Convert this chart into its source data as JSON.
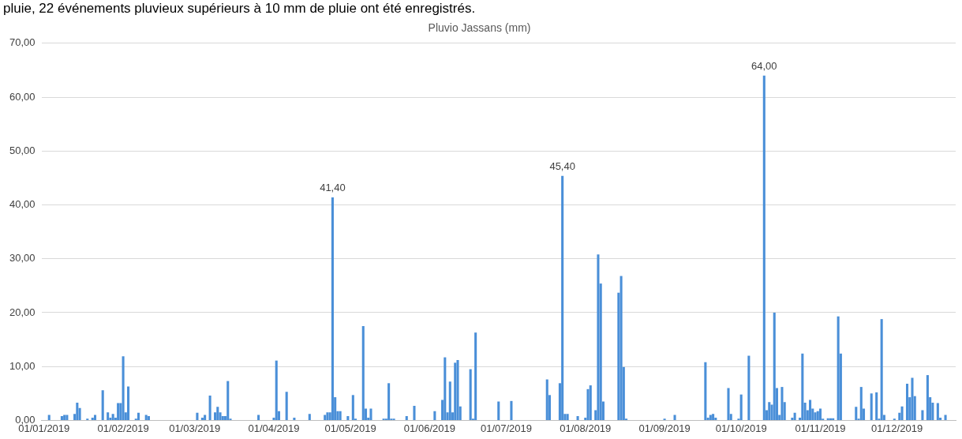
{
  "chart_data": {
    "type": "bar",
    "title": "Pluvio Jassans (mm)",
    "annotations": [
      "pluie, 22 événements pluvieux supérieurs à 10 mm de pluie ont été enregistrés."
    ],
    "x": [
      "2019-01-03",
      "2019-01-08",
      "2019-01-09",
      "2019-01-10",
      "2019-01-13",
      "2019-01-14",
      "2019-01-15",
      "2019-01-18",
      "2019-01-20",
      "2019-01-21",
      "2019-01-24",
      "2019-01-26",
      "2019-01-27",
      "2019-01-28",
      "2019-01-29",
      "2019-01-30",
      "2019-01-31",
      "2019-02-01",
      "2019-02-02",
      "2019-02-03",
      "2019-02-06",
      "2019-02-07",
      "2019-02-10",
      "2019-02-11",
      "2019-03-02",
      "2019-03-04",
      "2019-03-05",
      "2019-03-07",
      "2019-03-09",
      "2019-03-10",
      "2019-03-11",
      "2019-03-12",
      "2019-03-13",
      "2019-03-14",
      "2019-03-15",
      "2019-03-26",
      "2019-04-01",
      "2019-04-02",
      "2019-04-03",
      "2019-04-06",
      "2019-04-09",
      "2019-04-15",
      "2019-04-21",
      "2019-04-22",
      "2019-04-23",
      "2019-04-24",
      "2019-04-25",
      "2019-04-26",
      "2019-04-27",
      "2019-04-30",
      "2019-05-02",
      "2019-05-03",
      "2019-05-06",
      "2019-05-07",
      "2019-05-08",
      "2019-05-09",
      "2019-05-14",
      "2019-05-15",
      "2019-05-16",
      "2019-05-17",
      "2019-05-18",
      "2019-05-23",
      "2019-05-26",
      "2019-06-03",
      "2019-06-06",
      "2019-06-07",
      "2019-06-08",
      "2019-06-09",
      "2019-06-10",
      "2019-06-11",
      "2019-06-12",
      "2019-06-13",
      "2019-06-17",
      "2019-06-18",
      "2019-06-19",
      "2019-06-28",
      "2019-07-03",
      "2019-07-17",
      "2019-07-18",
      "2019-07-22",
      "2019-07-23",
      "2019-07-24",
      "2019-07-25",
      "2019-07-29",
      "2019-08-01",
      "2019-08-02",
      "2019-08-03",
      "2019-08-05",
      "2019-08-06",
      "2019-08-07",
      "2019-08-08",
      "2019-08-14",
      "2019-08-15",
      "2019-08-16",
      "2019-08-17",
      "2019-09-01",
      "2019-09-05",
      "2019-09-17",
      "2019-09-18",
      "2019-09-19",
      "2019-09-20",
      "2019-09-21",
      "2019-09-26",
      "2019-09-27",
      "2019-09-30",
      "2019-10-01",
      "2019-10-04",
      "2019-10-10",
      "2019-10-11",
      "2019-10-12",
      "2019-10-13",
      "2019-10-14",
      "2019-10-15",
      "2019-10-16",
      "2019-10-17",
      "2019-10-18",
      "2019-10-21",
      "2019-10-22",
      "2019-10-24",
      "2019-10-25",
      "2019-10-26",
      "2019-10-27",
      "2019-10-28",
      "2019-10-29",
      "2019-10-30",
      "2019-10-31",
      "2019-11-01",
      "2019-11-02",
      "2019-11-04",
      "2019-11-05",
      "2019-11-06",
      "2019-11-08",
      "2019-11-09",
      "2019-11-15",
      "2019-11-16",
      "2019-11-17",
      "2019-11-18",
      "2019-11-21",
      "2019-11-23",
      "2019-11-24",
      "2019-11-25",
      "2019-11-26",
      "2019-11-30",
      "2019-12-02",
      "2019-12-03",
      "2019-12-05",
      "2019-12-06",
      "2019-12-07",
      "2019-12-08",
      "2019-12-11",
      "2019-12-13",
      "2019-12-14",
      "2019-12-15",
      "2019-12-17",
      "2019-12-18",
      "2019-12-20"
    ],
    "values": [
      1.0,
      0.8,
      1.0,
      1.0,
      1.2,
      3.3,
      2.3,
      0.3,
      0.5,
      1.0,
      5.6,
      1.5,
      0.5,
      1.2,
      0.5,
      3.2,
      3.2,
      11.9,
      1.5,
      6.3,
      0.3,
      1.4,
      1.0,
      0.8,
      1.4,
      0.5,
      1.0,
      4.6,
      1.5,
      2.5,
      1.5,
      0.8,
      0.8,
      7.3,
      0.3,
      1.0,
      0.5,
      11.1,
      1.7,
      5.3,
      0.5,
      1.2,
      1.0,
      1.5,
      1.5,
      41.4,
      4.3,
      1.7,
      1.7,
      0.8,
      4.7,
      0.3,
      17.5,
      2.2,
      0.5,
      2.2,
      0.3,
      0.3,
      6.9,
      0.3,
      0.3,
      0.8,
      2.7,
      1.7,
      3.8,
      11.7,
      1.5,
      7.2,
      1.5,
      10.7,
      11.2,
      2.6,
      9.5,
      0.3,
      16.3,
      3.5,
      3.6,
      7.6,
      4.7,
      6.9,
      45.4,
      1.2,
      1.2,
      0.8,
      0.5,
      5.8,
      6.5,
      1.9,
      30.8,
      25.4,
      3.5,
      23.7,
      26.8,
      9.9,
      0.3,
      0.3,
      1.0,
      10.8,
      0.5,
      1.0,
      1.2,
      0.5,
      6.0,
      1.2,
      0.3,
      4.8,
      12.0,
      64.0,
      1.9,
      3.4,
      2.9,
      20.0,
      6.0,
      1.0,
      6.2,
      3.4,
      0.5,
      1.4,
      0.5,
      12.4,
      3.3,
      1.9,
      3.8,
      2.2,
      1.5,
      1.7,
      2.2,
      0.3,
      0.4,
      0.4,
      0.4,
      19.3,
      12.4,
      2.5,
      0.3,
      6.2,
      2.2,
      5.0,
      5.2,
      0.3,
      18.8,
      1.0,
      0.3,
      1.4,
      2.6,
      6.8,
      4.3,
      7.9,
      4.5,
      1.9,
      8.4,
      4.3,
      3.3,
      3.2,
      0.5,
      1.0
    ],
    "value_labels": [
      null,
      null,
      null,
      null,
      null,
      null,
      null,
      null,
      null,
      null,
      null,
      null,
      null,
      null,
      null,
      null,
      null,
      null,
      null,
      null,
      null,
      null,
      null,
      null,
      null,
      null,
      null,
      null,
      null,
      null,
      null,
      null,
      null,
      null,
      null,
      null,
      null,
      null,
      null,
      null,
      null,
      null,
      null,
      null,
      null,
      "41,40",
      null,
      null,
      null,
      null,
      null,
      null,
      null,
      null,
      null,
      null,
      null,
      null,
      null,
      null,
      null,
      null,
      null,
      null,
      null,
      null,
      null,
      null,
      null,
      null,
      null,
      null,
      null,
      null,
      null,
      null,
      null,
      null,
      null,
      null,
      "45,40",
      null,
      null,
      null,
      null,
      null,
      null,
      null,
      null,
      null,
      null,
      null,
      null,
      null,
      null,
      null,
      null,
      null,
      null,
      null,
      null,
      null,
      null,
      null,
      null,
      null,
      null,
      "64,00",
      null,
      null,
      null,
      null,
      null,
      null,
      null,
      null,
      null,
      null,
      null,
      null,
      null,
      null,
      null,
      null,
      null,
      null,
      null,
      null,
      null,
      null,
      null,
      null,
      null,
      null,
      null,
      null,
      null,
      null,
      null,
      null,
      null,
      null,
      null,
      null,
      null,
      null,
      null,
      null,
      null,
      null,
      null,
      null,
      null,
      null,
      null,
      null
    ],
    "color": "#4a8fd8",
    "xlim": [
      "2018-12-31",
      "2019-12-24"
    ],
    "xticks": [
      {
        "value": "2019-01-01",
        "label": "01/01/2019"
      },
      {
        "value": "2019-02-01",
        "label": "01/02/2019"
      },
      {
        "value": "2019-03-01",
        "label": "01/03/2019"
      },
      {
        "value": "2019-04-01",
        "label": "01/04/2019"
      },
      {
        "value": "2019-05-01",
        "label": "01/05/2019"
      },
      {
        "value": "2019-06-01",
        "label": "01/06/2019"
      },
      {
        "value": "2019-07-01",
        "label": "01/07/2019"
      },
      {
        "value": "2019-08-01",
        "label": "01/08/2019"
      },
      {
        "value": "2019-09-01",
        "label": "01/09/2019"
      },
      {
        "value": "2019-10-01",
        "label": "01/10/2019"
      },
      {
        "value": "2019-11-01",
        "label": "01/11/2019"
      },
      {
        "value": "2019-12-01",
        "label": "01/12/2019"
      }
    ],
    "ylim": [
      0,
      70
    ],
    "yticks": [
      {
        "value": 0,
        "label": "0,00"
      },
      {
        "value": 10,
        "label": "10,00"
      },
      {
        "value": 20,
        "label": "20,00"
      },
      {
        "value": 30,
        "label": "30,00"
      },
      {
        "value": 40,
        "label": "40,00"
      },
      {
        "value": 50,
        "label": "50,00"
      },
      {
        "value": 60,
        "label": "60,00"
      },
      {
        "value": 70,
        "label": "70,00"
      }
    ],
    "grid": "y",
    "legend": false
  }
}
